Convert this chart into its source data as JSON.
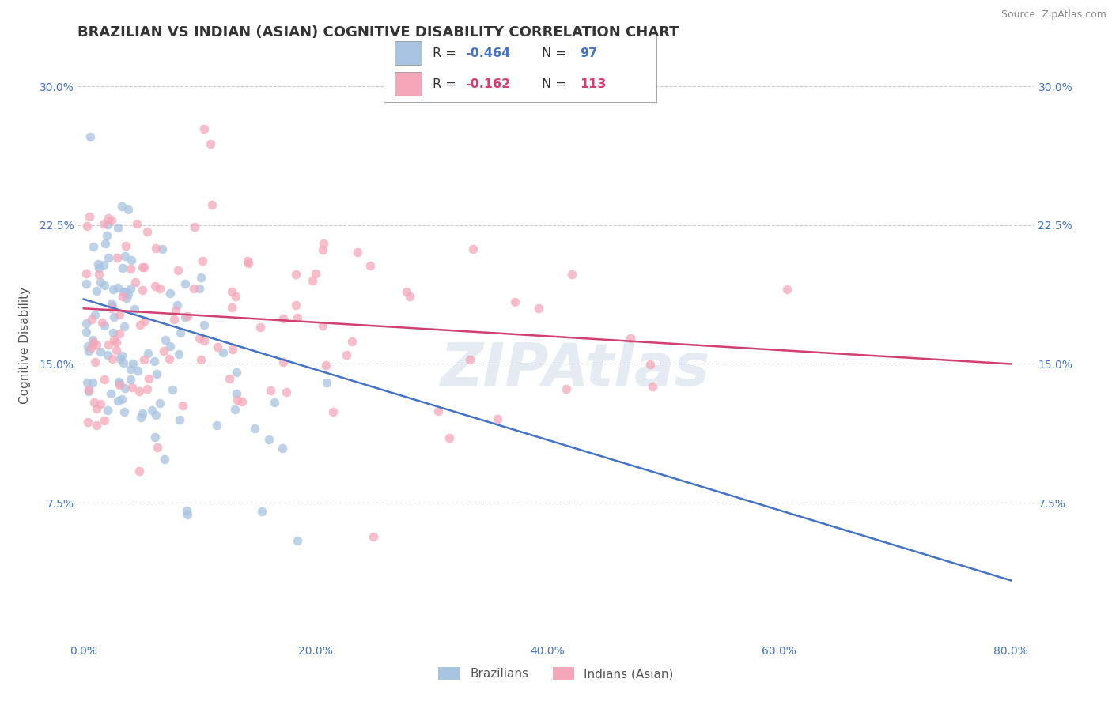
{
  "title": "BRAZILIAN VS INDIAN (ASIAN) COGNITIVE DISABILITY CORRELATION CHART",
  "source": "Source: ZipAtlas.com",
  "ylabel": "Cognitive Disability",
  "xlim": [
    -0.005,
    0.82
  ],
  "ylim": [
    0.0,
    0.32
  ],
  "xticks": [
    0.0,
    0.1,
    0.2,
    0.3,
    0.4,
    0.5,
    0.6,
    0.7,
    0.8
  ],
  "xticklabels": [
    "0.0%",
    "",
    "20.0%",
    "",
    "40.0%",
    "",
    "60.0%",
    "",
    "80.0%"
  ],
  "yticks_left": [
    0.075,
    0.15,
    0.225,
    0.3
  ],
  "ytick_labels_left": [
    "7.5%",
    "15.0%",
    "22.5%",
    "30.0%"
  ],
  "yticks_right": [
    0.075,
    0.15,
    0.225,
    0.3
  ],
  "ytick_labels_right": [
    "7.5%",
    "15.0%",
    "22.5%",
    "30.0%"
  ],
  "brazilian_color": "#a8c4e0",
  "indian_color": "#f4a7b9",
  "brazilian_line_color": "#4472c4",
  "indian_line_color": "#d04070",
  "legend_label_brazilian": "Brazilians",
  "legend_label_indian": "Indians (Asian)",
  "watermark_text": "ZIPAtlas",
  "background_color": "#ffffff",
  "grid_color": "#cccccc",
  "title_color": "#333333",
  "title_fontsize": 13,
  "axis_label_color": "#555555",
  "tick_label_color": "#4472c4",
  "source_color": "#888888",
  "legend_R_color": "#333333",
  "legend_N_color": "#4472c4",
  "legend_val_color_blue": "#4472c4",
  "legend_val_color_pink": "#d04070"
}
